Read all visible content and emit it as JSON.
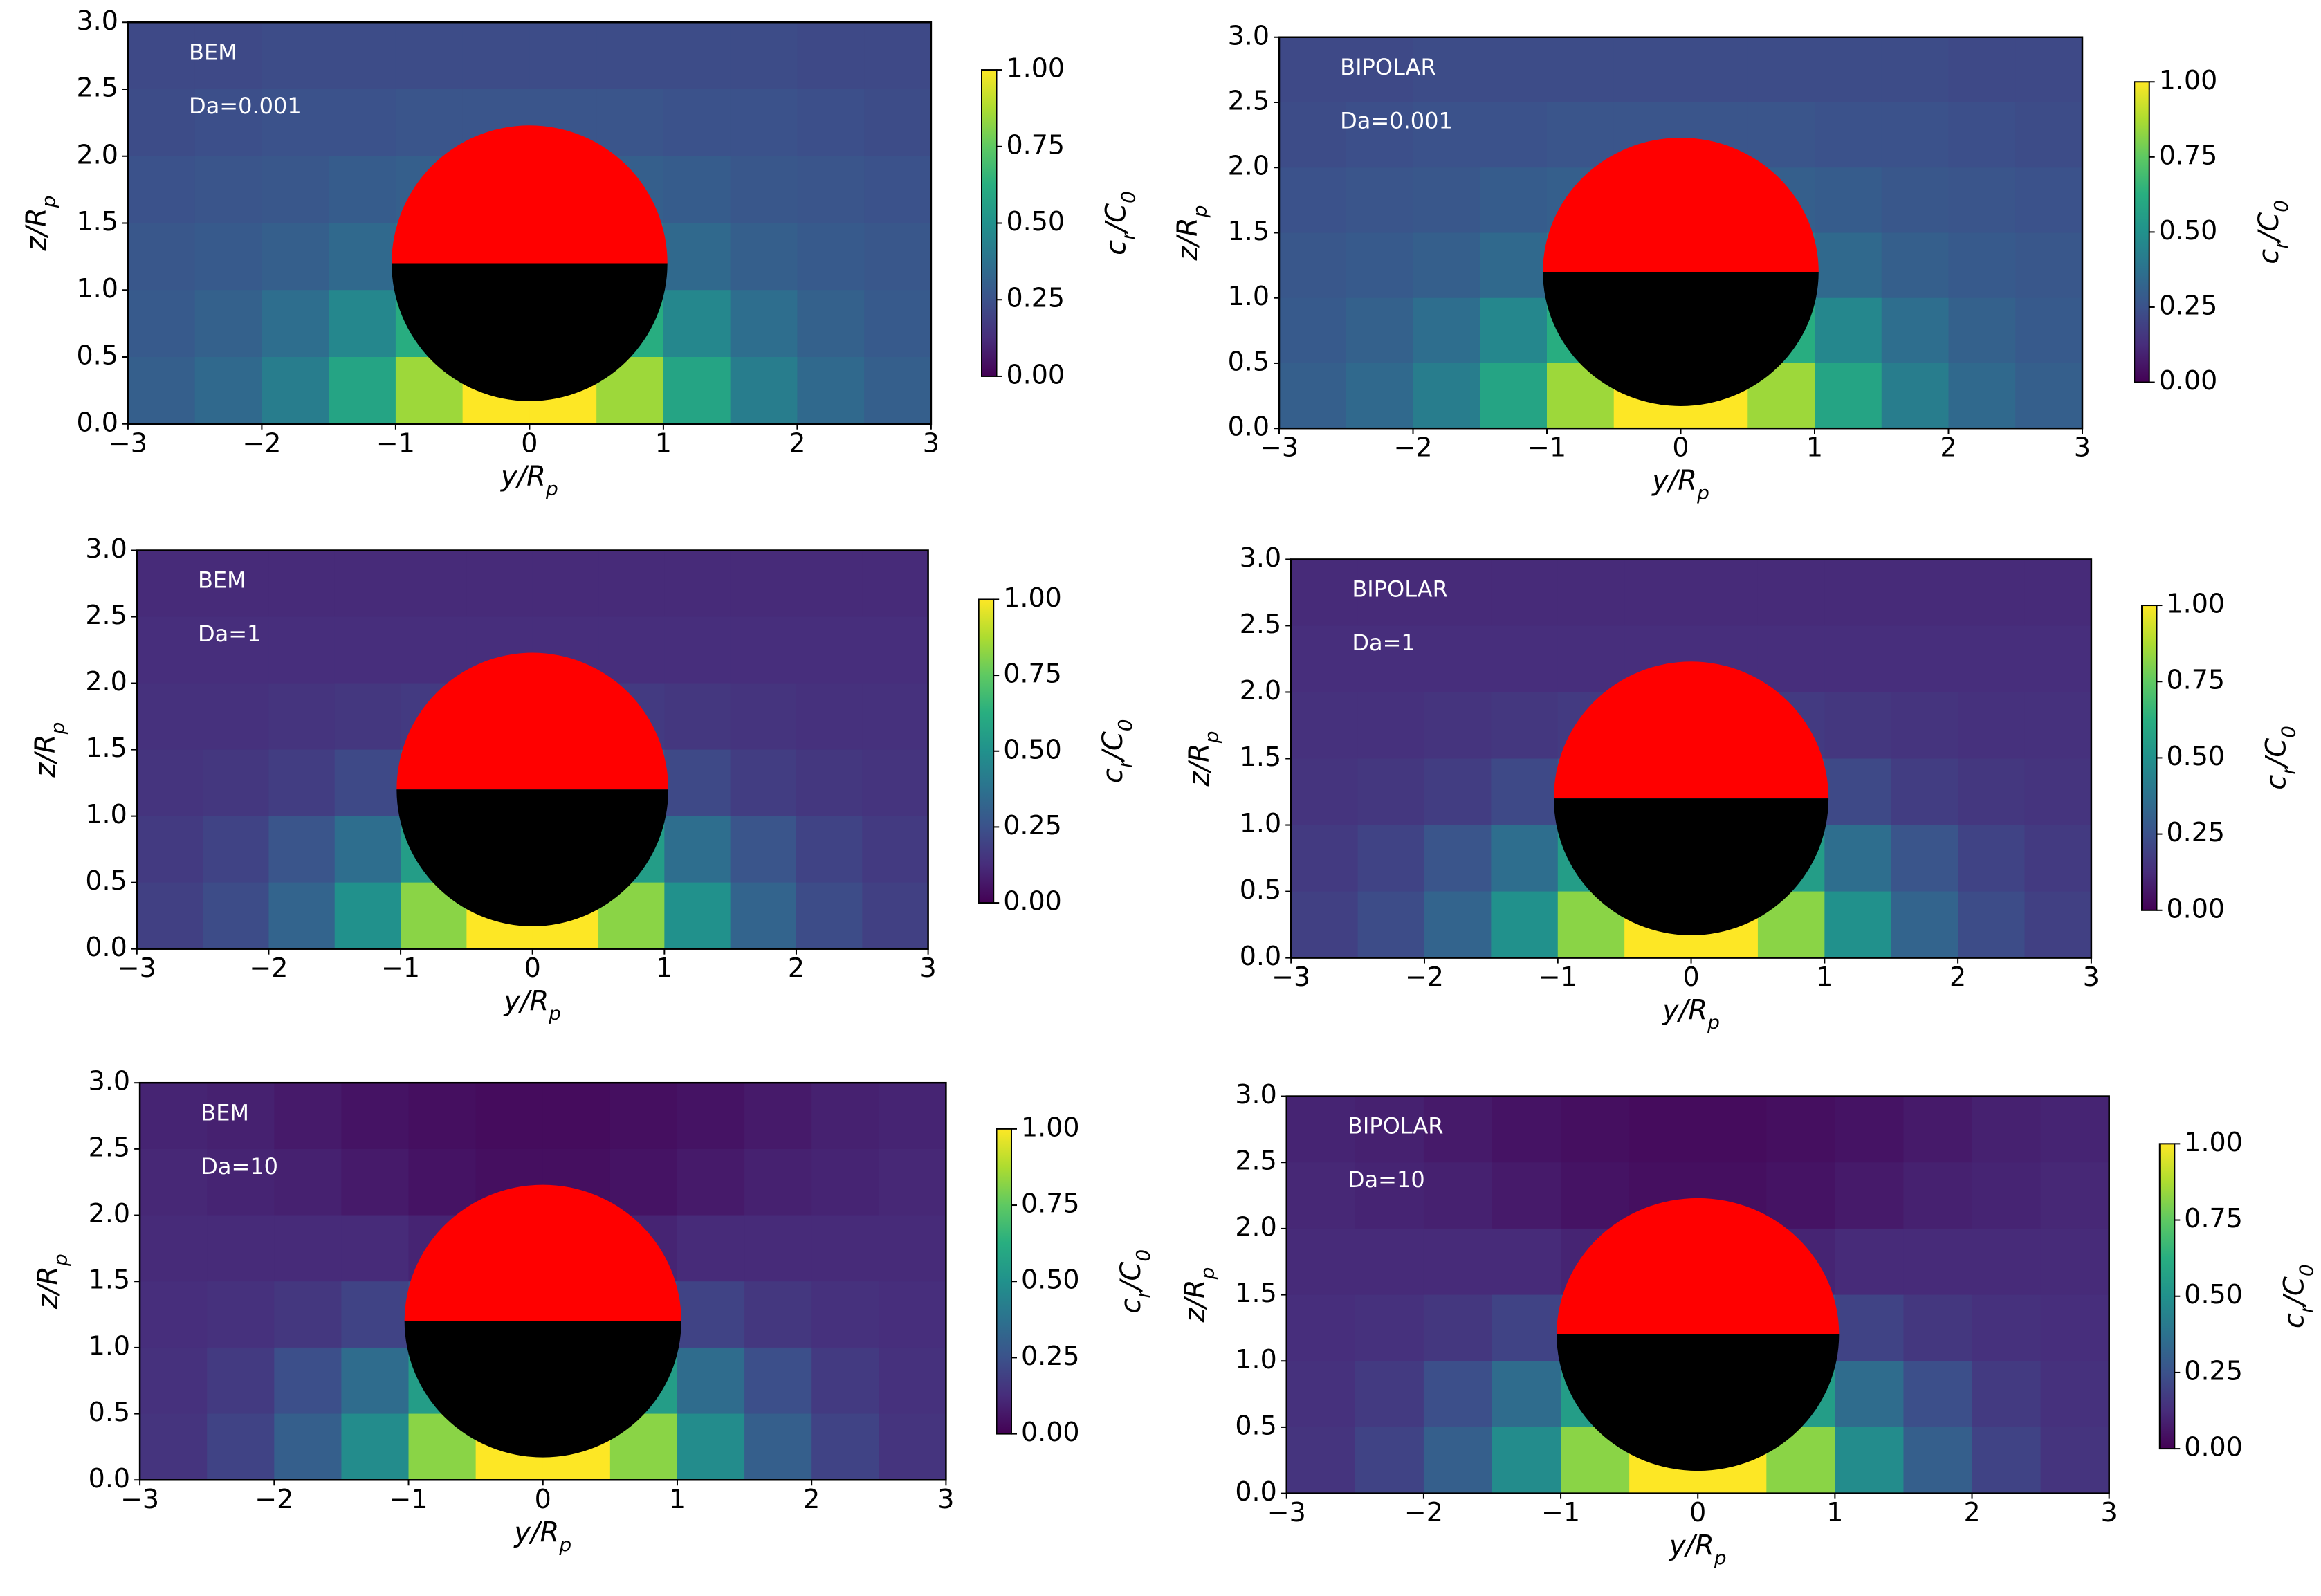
{
  "chart_data": [
    {
      "type": "heatmap",
      "annotations": [
        "BEM",
        "Da=0.001"
      ],
      "xlabel": [
        "y/R",
        "p"
      ],
      "ylabel": [
        "z/R",
        "p"
      ],
      "colorbar_label": [
        "c",
        "r",
        "/C",
        "0"
      ],
      "cmap": "viridis",
      "clim": [
        0,
        1
      ],
      "xlim": [
        -3,
        3
      ],
      "ylim": [
        0,
        3
      ],
      "xticks": [
        {
          "value": -3,
          "label": "−3"
        },
        {
          "value": -2,
          "label": "−2"
        },
        {
          "value": -1,
          "label": "−1"
        },
        0,
        1,
        2,
        3
      ],
      "yticks": [
        {
          "value": 0,
          "label": "0.0"
        },
        0.5,
        {
          "value": 1,
          "label": "1.0"
        },
        1.5,
        {
          "value": 2,
          "label": "2.0"
        },
        2.5,
        {
          "value": 3,
          "label": "3.0"
        }
      ],
      "cticks": [
        {
          "value": 0,
          "label": "0.00"
        },
        0.25,
        {
          "value": 0.5,
          "label": "0.50"
        },
        0.75,
        {
          "value": 1,
          "label": "1.00"
        }
      ],
      "particle": {
        "center": [
          0,
          1.2
        ],
        "radius": 1.03
      },
      "x": [
        -2.75,
        -2.25,
        -1.75,
        -1.25,
        -0.75,
        -0.25,
        0.25,
        0.75,
        1.25,
        1.75,
        2.25,
        2.75
      ],
      "y": [
        2.75,
        2.25,
        1.75,
        1.25,
        0.75,
        0.25
      ],
      "z": [
        [
          0.22,
          0.22,
          0.23,
          0.23,
          0.23,
          0.23,
          0.23,
          0.23,
          0.23,
          0.23,
          0.22,
          0.22
        ],
        [
          0.23,
          0.24,
          0.25,
          0.25,
          0.26,
          0.26,
          0.26,
          0.26,
          0.25,
          0.25,
          0.24,
          0.23
        ],
        [
          0.25,
          0.26,
          0.27,
          0.29,
          0.3,
          0.3,
          0.3,
          0.3,
          0.29,
          0.27,
          0.26,
          0.25
        ],
        [
          0.27,
          0.28,
          0.3,
          0.34,
          0.4,
          0.42,
          0.42,
          0.4,
          0.34,
          0.3,
          0.28,
          0.27
        ],
        [
          0.28,
          0.31,
          0.36,
          0.46,
          0.62,
          0.7,
          0.7,
          0.62,
          0.46,
          0.36,
          0.31,
          0.28
        ],
        [
          0.3,
          0.34,
          0.42,
          0.58,
          0.85,
          1.0,
          1.0,
          0.85,
          0.58,
          0.42,
          0.34,
          0.3
        ]
      ]
    },
    {
      "type": "heatmap",
      "annotations": [
        "BIPOLAR",
        "Da=0.001"
      ],
      "xlabel": [
        "y/R",
        "p"
      ],
      "ylabel": [
        "z/R",
        "p"
      ],
      "colorbar_label": [
        "c",
        "r",
        "/C",
        "0"
      ],
      "cmap": "viridis",
      "clim": [
        0,
        1
      ],
      "xlim": [
        -3,
        3
      ],
      "ylim": [
        0,
        3
      ],
      "xticks": [
        {
          "value": -3,
          "label": "−3"
        },
        {
          "value": -2,
          "label": "−2"
        },
        {
          "value": -1,
          "label": "−1"
        },
        0,
        1,
        2,
        3
      ],
      "yticks": [
        {
          "value": 0,
          "label": "0.0"
        },
        0.5,
        {
          "value": 1,
          "label": "1.0"
        },
        1.5,
        {
          "value": 2,
          "label": "2.0"
        },
        2.5,
        {
          "value": 3,
          "label": "3.0"
        }
      ],
      "cticks": [
        {
          "value": 0,
          "label": "0.00"
        },
        0.25,
        {
          "value": 0.5,
          "label": "0.50"
        },
        0.75,
        {
          "value": 1,
          "label": "1.00"
        }
      ],
      "particle": {
        "center": [
          0,
          1.2
        ],
        "radius": 1.03
      },
      "x": [
        -2.75,
        -2.25,
        -1.75,
        -1.25,
        -0.75,
        -0.25,
        0.25,
        0.75,
        1.25,
        1.75,
        2.25,
        2.75
      ],
      "y": [
        2.75,
        2.25,
        1.75,
        1.25,
        0.75,
        0.25
      ],
      "z": [
        [
          0.22,
          0.22,
          0.23,
          0.23,
          0.23,
          0.23,
          0.23,
          0.23,
          0.23,
          0.23,
          0.22,
          0.22
        ],
        [
          0.23,
          0.24,
          0.25,
          0.25,
          0.26,
          0.26,
          0.26,
          0.26,
          0.25,
          0.25,
          0.24,
          0.23
        ],
        [
          0.25,
          0.26,
          0.27,
          0.29,
          0.3,
          0.3,
          0.3,
          0.3,
          0.29,
          0.27,
          0.26,
          0.25
        ],
        [
          0.27,
          0.28,
          0.3,
          0.34,
          0.4,
          0.42,
          0.42,
          0.4,
          0.34,
          0.3,
          0.28,
          0.27
        ],
        [
          0.28,
          0.31,
          0.36,
          0.46,
          0.62,
          0.7,
          0.7,
          0.62,
          0.46,
          0.36,
          0.31,
          0.28
        ],
        [
          0.3,
          0.34,
          0.42,
          0.58,
          0.85,
          1.0,
          1.0,
          0.85,
          0.58,
          0.42,
          0.34,
          0.3
        ]
      ]
    },
    {
      "type": "heatmap",
      "annotations": [
        "BEM",
        "Da=1"
      ],
      "xlabel": [
        "y/R",
        "p"
      ],
      "ylabel": [
        "z/R",
        "p"
      ],
      "colorbar_label": [
        "c",
        "r",
        "/C",
        "0"
      ],
      "cmap": "viridis",
      "clim": [
        0,
        1
      ],
      "xlim": [
        -3,
        3
      ],
      "ylim": [
        0,
        3
      ],
      "xticks": [
        {
          "value": -3,
          "label": "−3"
        },
        {
          "value": -2,
          "label": "−2"
        },
        {
          "value": -1,
          "label": "−1"
        },
        0,
        1,
        2,
        3
      ],
      "yticks": [
        {
          "value": 0,
          "label": "0.0"
        },
        0.5,
        {
          "value": 1,
          "label": "1.0"
        },
        1.5,
        {
          "value": 2,
          "label": "2.0"
        },
        2.5,
        {
          "value": 3,
          "label": "3.0"
        }
      ],
      "cticks": [
        {
          "value": 0,
          "label": "0.00"
        },
        0.25,
        {
          "value": 0.5,
          "label": "0.50"
        },
        0.75,
        {
          "value": 1,
          "label": "1.00"
        }
      ],
      "particle": {
        "center": [
          0,
          1.2
        ],
        "radius": 1.03
      },
      "x": [
        -2.75,
        -2.25,
        -1.75,
        -1.25,
        -0.75,
        -0.25,
        0.25,
        0.75,
        1.25,
        1.75,
        2.25,
        2.75
      ],
      "y": [
        2.75,
        2.25,
        1.75,
        1.25,
        0.75,
        0.25
      ],
      "z": [
        [
          0.12,
          0.12,
          0.12,
          0.12,
          0.12,
          0.12,
          0.12,
          0.12,
          0.12,
          0.12,
          0.12,
          0.12
        ],
        [
          0.13,
          0.13,
          0.13,
          0.13,
          0.13,
          0.13,
          0.13,
          0.13,
          0.13,
          0.13,
          0.13,
          0.13
        ],
        [
          0.14,
          0.14,
          0.15,
          0.16,
          0.17,
          0.17,
          0.17,
          0.17,
          0.16,
          0.15,
          0.14,
          0.14
        ],
        [
          0.15,
          0.16,
          0.18,
          0.22,
          0.28,
          0.3,
          0.3,
          0.28,
          0.22,
          0.18,
          0.16,
          0.15
        ],
        [
          0.17,
          0.2,
          0.26,
          0.36,
          0.55,
          0.65,
          0.65,
          0.55,
          0.36,
          0.26,
          0.2,
          0.17
        ],
        [
          0.19,
          0.23,
          0.32,
          0.5,
          0.82,
          1.0,
          1.0,
          0.82,
          0.5,
          0.32,
          0.23,
          0.19
        ]
      ]
    },
    {
      "type": "heatmap",
      "annotations": [
        "BIPOLAR",
        "Da=1"
      ],
      "xlabel": [
        "y/R",
        "p"
      ],
      "ylabel": [
        "z/R",
        "p"
      ],
      "colorbar_label": [
        "c",
        "r",
        "/C",
        "0"
      ],
      "cmap": "viridis",
      "clim": [
        0,
        1
      ],
      "xlim": [
        -3,
        3
      ],
      "ylim": [
        0,
        3
      ],
      "xticks": [
        {
          "value": -3,
          "label": "−3"
        },
        {
          "value": -2,
          "label": "−2"
        },
        {
          "value": -1,
          "label": "−1"
        },
        0,
        1,
        2,
        3
      ],
      "yticks": [
        {
          "value": 0,
          "label": "0.0"
        },
        0.5,
        {
          "value": 1,
          "label": "1.0"
        },
        1.5,
        {
          "value": 2,
          "label": "2.0"
        },
        2.5,
        {
          "value": 3,
          "label": "3.0"
        }
      ],
      "cticks": [
        {
          "value": 0,
          "label": "0.00"
        },
        0.25,
        {
          "value": 0.5,
          "label": "0.50"
        },
        0.75,
        {
          "value": 1,
          "label": "1.00"
        }
      ],
      "particle": {
        "center": [
          0,
          1.2
        ],
        "radius": 1.03
      },
      "x": [
        -2.75,
        -2.25,
        -1.75,
        -1.25,
        -0.75,
        -0.25,
        0.25,
        0.75,
        1.25,
        1.75,
        2.25,
        2.75
      ],
      "y": [
        2.75,
        2.25,
        1.75,
        1.25,
        0.75,
        0.25
      ],
      "z": [
        [
          0.12,
          0.12,
          0.12,
          0.12,
          0.12,
          0.12,
          0.12,
          0.12,
          0.12,
          0.12,
          0.12,
          0.12
        ],
        [
          0.13,
          0.13,
          0.13,
          0.13,
          0.13,
          0.13,
          0.13,
          0.13,
          0.13,
          0.13,
          0.13,
          0.13
        ],
        [
          0.14,
          0.14,
          0.15,
          0.16,
          0.17,
          0.17,
          0.17,
          0.17,
          0.16,
          0.15,
          0.14,
          0.14
        ],
        [
          0.15,
          0.16,
          0.18,
          0.22,
          0.28,
          0.3,
          0.3,
          0.28,
          0.22,
          0.18,
          0.16,
          0.15
        ],
        [
          0.17,
          0.2,
          0.26,
          0.36,
          0.55,
          0.65,
          0.65,
          0.55,
          0.36,
          0.26,
          0.2,
          0.17
        ],
        [
          0.19,
          0.23,
          0.32,
          0.5,
          0.82,
          1.0,
          1.0,
          0.82,
          0.5,
          0.32,
          0.23,
          0.19
        ]
      ]
    },
    {
      "type": "heatmap",
      "annotations": [
        "BEM",
        "Da=10"
      ],
      "xlabel": [
        "y/R",
        "p"
      ],
      "ylabel": [
        "z/R",
        "p"
      ],
      "colorbar_label": [
        "c",
        "r",
        "/C",
        "0"
      ],
      "cmap": "viridis",
      "clim": [
        0,
        1
      ],
      "xlim": [
        -3,
        3
      ],
      "ylim": [
        0,
        3
      ],
      "xticks": [
        {
          "value": -3,
          "label": "−3"
        },
        {
          "value": -2,
          "label": "−2"
        },
        {
          "value": -1,
          "label": "−1"
        },
        0,
        1,
        2,
        3
      ],
      "yticks": [
        {
          "value": 0,
          "label": "0.0"
        },
        0.5,
        {
          "value": 1,
          "label": "1.0"
        },
        1.5,
        {
          "value": 2,
          "label": "2.0"
        },
        2.5,
        {
          "value": 3,
          "label": "3.0"
        }
      ],
      "cticks": [
        {
          "value": 0,
          "label": "0.00"
        },
        0.25,
        {
          "value": 0.5,
          "label": "0.50"
        },
        0.75,
        {
          "value": 1,
          "label": "1.00"
        }
      ],
      "particle": {
        "center": [
          0,
          1.2
        ],
        "radius": 1.03
      },
      "x": [
        -2.75,
        -2.25,
        -1.75,
        -1.25,
        -0.75,
        -0.25,
        0.25,
        0.75,
        1.25,
        1.75,
        2.25,
        2.75
      ],
      "y": [
        2.75,
        2.25,
        1.75,
        1.25,
        0.75,
        0.25
      ],
      "z": [
        [
          0.1,
          0.09,
          0.07,
          0.05,
          0.04,
          0.03,
          0.03,
          0.04,
          0.05,
          0.07,
          0.09,
          0.1
        ],
        [
          0.11,
          0.1,
          0.09,
          0.07,
          0.05,
          0.04,
          0.04,
          0.05,
          0.07,
          0.09,
          0.1,
          0.11
        ],
        [
          0.12,
          0.12,
          0.12,
          0.12,
          0.1,
          0.08,
          0.08,
          0.1,
          0.12,
          0.12,
          0.12,
          0.12
        ],
        [
          0.13,
          0.14,
          0.16,
          0.2,
          0.25,
          0.25,
          0.25,
          0.25,
          0.2,
          0.16,
          0.14,
          0.13
        ],
        [
          0.14,
          0.17,
          0.24,
          0.35,
          0.55,
          0.65,
          0.65,
          0.55,
          0.35,
          0.24,
          0.17,
          0.14
        ],
        [
          0.15,
          0.2,
          0.3,
          0.48,
          0.82,
          1.0,
          1.0,
          0.82,
          0.48,
          0.3,
          0.2,
          0.15
        ]
      ]
    },
    {
      "type": "heatmap",
      "annotations": [
        "BIPOLAR",
        "Da=10"
      ],
      "xlabel": [
        "y/R",
        "p"
      ],
      "ylabel": [
        "z/R",
        "p"
      ],
      "colorbar_label": [
        "c",
        "r",
        "/C",
        "0"
      ],
      "cmap": "viridis",
      "clim": [
        0,
        1
      ],
      "xlim": [
        -3,
        3
      ],
      "ylim": [
        0,
        3
      ],
      "xticks": [
        {
          "value": -3,
          "label": "−3"
        },
        {
          "value": -2,
          "label": "−2"
        },
        {
          "value": -1,
          "label": "−1"
        },
        0,
        1,
        2,
        3
      ],
      "yticks": [
        {
          "value": 0,
          "label": "0.0"
        },
        0.5,
        {
          "value": 1,
          "label": "1.0"
        },
        1.5,
        {
          "value": 2,
          "label": "2.0"
        },
        2.5,
        {
          "value": 3,
          "label": "3.0"
        }
      ],
      "cticks": [
        {
          "value": 0,
          "label": "0.00"
        },
        0.25,
        {
          "value": 0.5,
          "label": "0.50"
        },
        0.75,
        {
          "value": 1,
          "label": "1.00"
        }
      ],
      "particle": {
        "center": [
          0,
          1.2
        ],
        "radius": 1.03
      },
      "x": [
        -2.75,
        -2.25,
        -1.75,
        -1.25,
        -0.75,
        -0.25,
        0.25,
        0.75,
        1.25,
        1.75,
        2.25,
        2.75
      ],
      "y": [
        2.75,
        2.25,
        1.75,
        1.25,
        0.75,
        0.25
      ],
      "z": [
        [
          0.1,
          0.09,
          0.07,
          0.05,
          0.04,
          0.03,
          0.03,
          0.04,
          0.05,
          0.07,
          0.09,
          0.1
        ],
        [
          0.11,
          0.1,
          0.09,
          0.07,
          0.05,
          0.04,
          0.04,
          0.05,
          0.07,
          0.09,
          0.1,
          0.11
        ],
        [
          0.12,
          0.12,
          0.12,
          0.12,
          0.1,
          0.08,
          0.08,
          0.1,
          0.12,
          0.12,
          0.12,
          0.12
        ],
        [
          0.13,
          0.14,
          0.16,
          0.2,
          0.25,
          0.25,
          0.25,
          0.25,
          0.2,
          0.16,
          0.14,
          0.13
        ],
        [
          0.14,
          0.17,
          0.24,
          0.35,
          0.55,
          0.65,
          0.65,
          0.55,
          0.35,
          0.24,
          0.17,
          0.14
        ],
        [
          0.15,
          0.2,
          0.3,
          0.48,
          0.82,
          1.0,
          1.0,
          0.82,
          0.48,
          0.3,
          0.2,
          0.15
        ]
      ]
    }
  ]
}
